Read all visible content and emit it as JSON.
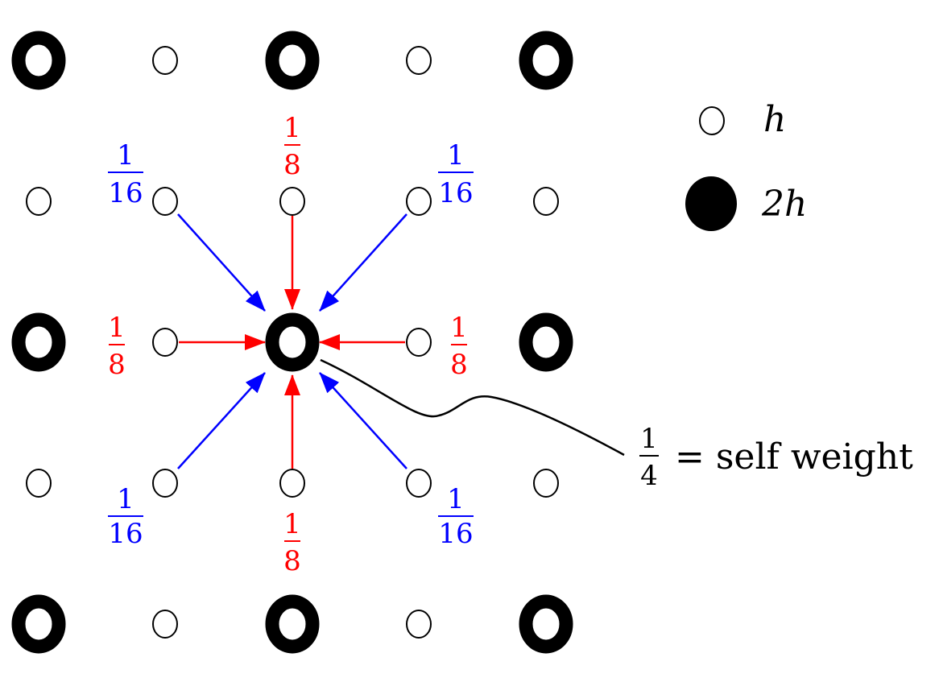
{
  "colors": {
    "background": "#ffffff",
    "node": "#000000",
    "direct_neighbor": "#ff0000",
    "diagonal_neighbor": "#0000ff",
    "self_link": "#000000"
  },
  "legend": {
    "fine_symbol": "h",
    "coarse_symbol": "2h"
  },
  "weights": {
    "direct": {
      "numerator": "1",
      "denominator": "8"
    },
    "diagonal": {
      "numerator": "1",
      "denominator": "16"
    },
    "self": {
      "numerator": "1",
      "denominator": "4",
      "text": "= self weight"
    }
  }
}
